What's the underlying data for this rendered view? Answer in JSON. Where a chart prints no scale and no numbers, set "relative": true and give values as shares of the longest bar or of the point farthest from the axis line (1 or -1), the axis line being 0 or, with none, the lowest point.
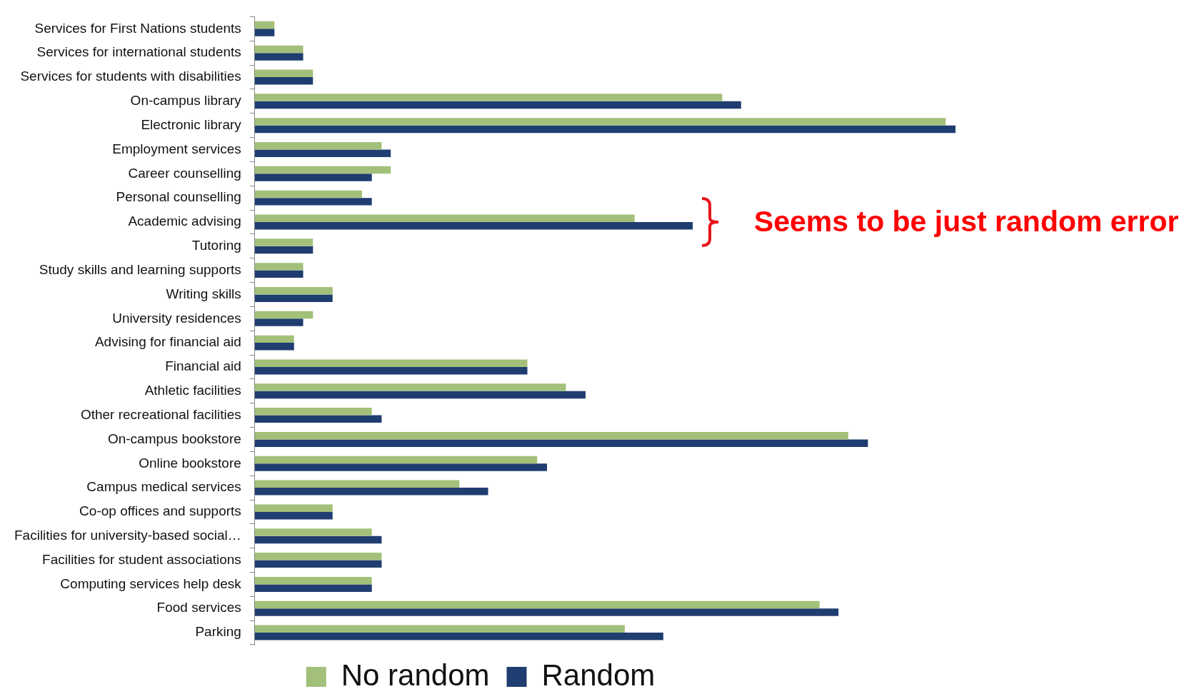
{
  "chart_data": {
    "type": "bar",
    "orientation": "horizontal",
    "relative": true,
    "categories": [
      "Services for First Nations students",
      "Services for international students",
      "Services for students with disabilities",
      "On-campus library",
      "Electronic library",
      "Employment services",
      "Career counselling",
      "Personal counselling",
      "Academic advising",
      "Tutoring",
      "Study skills and learning supports",
      "Writing skills",
      "University residences",
      "Advising for financial aid",
      "Financial aid",
      "Athletic facilities",
      "Other recreational facilities",
      "On-campus bookstore",
      "Online bookstore",
      "Campus medical services",
      "Co-op offices and supports",
      "Facilities for university-based social…",
      "Facilities for student associations",
      "Computing services help desk",
      "Food services",
      "Parking"
    ],
    "series": [
      {
        "name": "No random",
        "color": "#a3c07a",
        "values": [
          0.028,
          0.069,
          0.083,
          0.667,
          0.986,
          0.181,
          0.194,
          0.153,
          0.542,
          0.083,
          0.069,
          0.111,
          0.083,
          0.056,
          0.389,
          0.444,
          0.167,
          0.847,
          0.403,
          0.292,
          0.111,
          0.167,
          0.181,
          0.167,
          0.806,
          0.528
        ]
      },
      {
        "name": "Random",
        "color": "#1f3d70",
        "values": [
          0.028,
          0.069,
          0.083,
          0.694,
          1,
          0.194,
          0.167,
          0.167,
          0.625,
          0.083,
          0.069,
          0.111,
          0.069,
          0.056,
          0.389,
          0.472,
          0.181,
          0.875,
          0.417,
          0.333,
          0.111,
          0.181,
          0.181,
          0.167,
          0.833,
          0.583
        ]
      }
    ],
    "legend": "bottom",
    "annotations": [
      "Seems to be just random error"
    ]
  }
}
